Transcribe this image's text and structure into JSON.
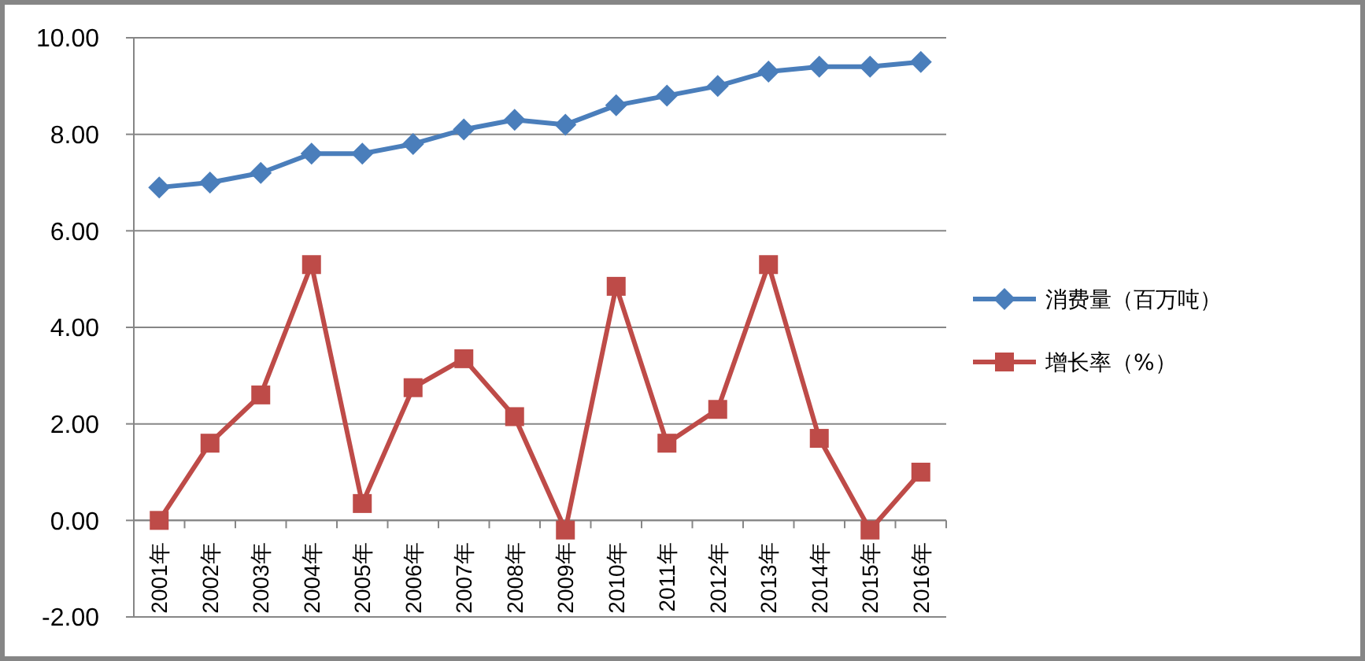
{
  "chart_data": {
    "type": "line",
    "categories": [
      "2001年",
      "2002年",
      "2003年",
      "2004年",
      "2005年",
      "2006年",
      "2007年",
      "2008年",
      "2009年",
      "2010年",
      "2011年",
      "2012年",
      "2013年",
      "2014年",
      "2015年",
      "2016年"
    ],
    "series": [
      {
        "name": "消费量（百万吨）",
        "color": "#4a7ebb",
        "marker": "diamond",
        "values": [
          6.9,
          7.0,
          7.2,
          7.6,
          7.6,
          7.8,
          8.1,
          8.3,
          8.2,
          8.6,
          8.8,
          9.0,
          9.3,
          9.4,
          9.4,
          9.5
        ]
      },
      {
        "name": "增长率（%）",
        "color": "#be4b48",
        "marker": "square",
        "values": [
          0.0,
          1.6,
          2.6,
          5.3,
          0.35,
          2.75,
          3.35,
          2.15,
          -0.2,
          4.85,
          1.6,
          2.3,
          5.3,
          1.7,
          -0.2,
          1.0
        ]
      }
    ],
    "ylim": [
      -2,
      10
    ],
    "yticks": [
      {
        "value": -2,
        "label": "-2.00"
      },
      {
        "value": 0,
        "label": "0.00"
      },
      {
        "value": 2,
        "label": "2.00"
      },
      {
        "value": 4,
        "label": "4.00"
      },
      {
        "value": 6,
        "label": "6.00"
      },
      {
        "value": 8,
        "label": "8.00"
      },
      {
        "value": 10,
        "label": "10.00"
      }
    ],
    "grid": "y",
    "legend": "right"
  }
}
